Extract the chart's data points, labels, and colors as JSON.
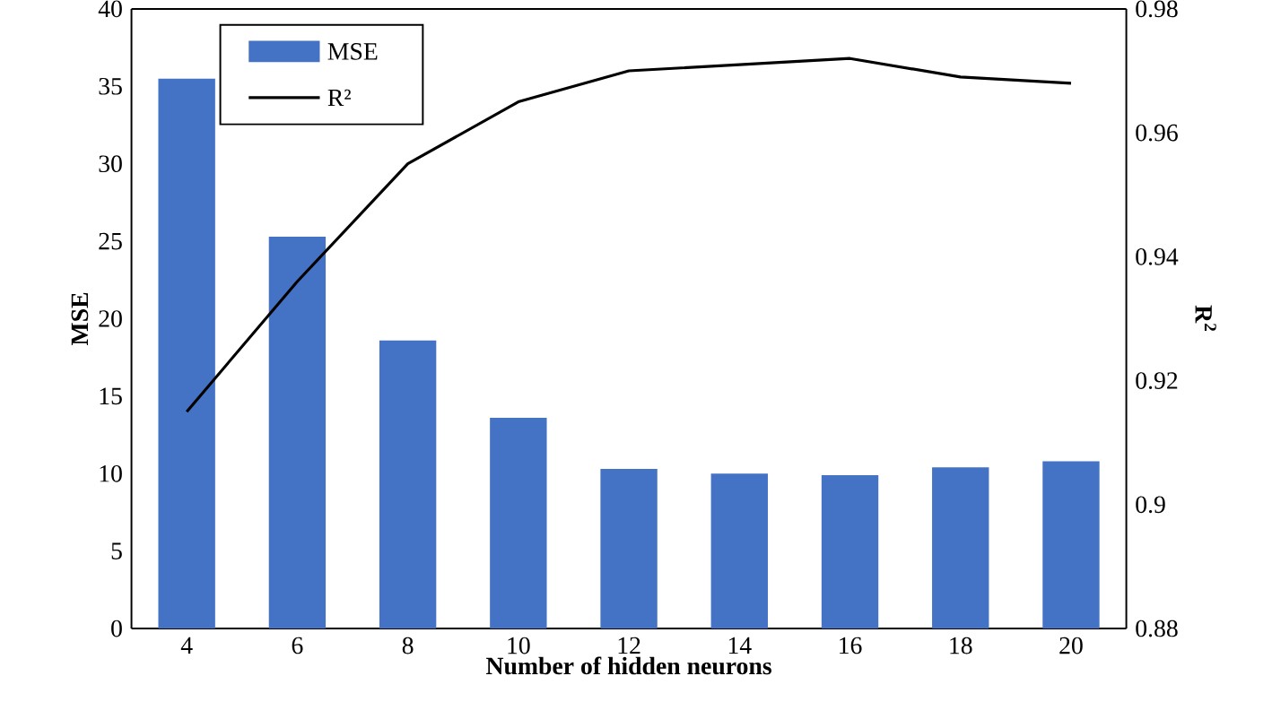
{
  "chart_data": {
    "type": "bar",
    "xlabel": "Number of hidden neurons",
    "ylabel": "MSE",
    "y2label": "R$^{2}$",
    "categories": [
      "4",
      "6",
      "8",
      "10",
      "12",
      "14",
      "16",
      "18",
      "20"
    ],
    "series": [
      {
        "name": "MSE",
        "color": "#4472c4",
        "values": [
          35.5,
          25.3,
          18.6,
          13.6,
          10.3,
          10.0,
          9.9,
          10.4,
          10.8
        ]
      },
      {
        "name": "R²",
        "type": "line",
        "axis": "y2",
        "color": "#000000",
        "values": [
          0.915,
          0.936,
          0.955,
          0.965,
          0.97,
          0.971,
          0.972,
          0.969,
          0.968
        ]
      }
    ],
    "ylim": [
      0,
      40
    ],
    "yticks": [
      0,
      5,
      10,
      15,
      20,
      25,
      30,
      35,
      40
    ],
    "y2lim": [
      0.88,
      0.98
    ],
    "y2ticks": [
      0.88,
      {
        "value": 0.9,
        "label": "0.9"
      },
      0.92,
      0.94,
      0.96,
      0.98
    ],
    "legend": "top left",
    "grid": false,
    "marker": "none",
    "line_style": "solid"
  }
}
